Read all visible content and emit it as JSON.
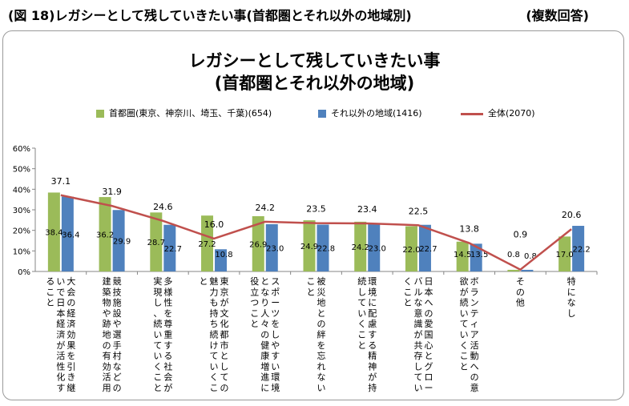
{
  "header": {
    "left": "(図 18)レガシーとして残していきたい事(首都圏とそれ以外の地域別)",
    "right": "(複数回答)"
  },
  "colors": {
    "green": "#9bbb59",
    "blue": "#4f81bd",
    "red": "#c0504d"
  },
  "chart_data": {
    "type": "bar",
    "title": "レガシーとして残していきたい事",
    "subtitle": "(首都圏とそれ以外の地域)",
    "ylim": [
      0,
      60
    ],
    "yticks": [
      "0%",
      "10%",
      "20%",
      "30%",
      "40%",
      "50%",
      "60%"
    ],
    "ytick_values": [
      0,
      10,
      20,
      30,
      40,
      50,
      60
    ],
    "grid": false,
    "legend": "top",
    "categories": [
      "大会の経済効果を引き継いで日本経済が活性化すること",
      "競技施設や選手村などの建築物や跡地の有効活用",
      "多様性を尊重する社会が実現し、続いていくこと",
      "東京が文化都市としての魅力も持ち続けていくこと",
      "スポーツをしやすい環境となり人々の健康増進に役立つこと",
      "被災地との絆を忘れないこと",
      "環境に配慮する精神が持続していくこと",
      "日本への愛国心とグローバルな意識が共存していくこと",
      "ボランティア活動への意欲が続いていくこと",
      "その他",
      "特になし"
    ],
    "series": [
      {
        "name": "首都圏(東京、神奈川、埼玉、千葉)(654)",
        "kind": "bar",
        "values": [
          38.4,
          36.2,
          28.7,
          27.2,
          26.9,
          24.9,
          24.2,
          22.0,
          14.5,
          0.8,
          17.0
        ],
        "labels": [
          "38.4",
          "36.2",
          "28.7",
          "27.2",
          "26.9",
          "24.9",
          "24.2",
          "22.0",
          "14.5",
          "0.8",
          "17.0"
        ]
      },
      {
        "name": "それ以外の地域(1416)",
        "kind": "bar",
        "values": [
          36.4,
          29.9,
          22.7,
          10.8,
          23.0,
          22.8,
          23.0,
          22.7,
          13.5,
          0.8,
          22.2
        ],
        "labels": [
          "36.4",
          "29.9",
          "22.7",
          "10.8",
          "23.0",
          "22.8",
          "23.0",
          "22.7",
          "13.5",
          "0.8",
          "22.2"
        ]
      },
      {
        "name": "全体(2070)",
        "kind": "line",
        "values": [
          37.1,
          31.9,
          24.6,
          16.0,
          24.2,
          23.5,
          23.4,
          22.5,
          13.8,
          0.9,
          20.6
        ],
        "labels": [
          "37.1",
          "31.9",
          "24.6",
          "16.0",
          "24.2",
          "23.5",
          "23.4",
          "22.5",
          "13.8",
          "0.9",
          "20.6"
        ]
      }
    ]
  }
}
